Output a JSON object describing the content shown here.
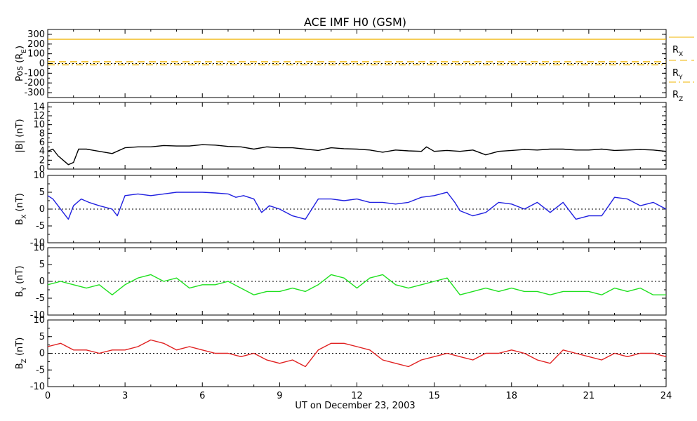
{
  "title": "ACE IMF H0 (GSM)",
  "xlabel": "UT on December 23, 2003",
  "x_ticks": [
    "0",
    "3",
    "6",
    "9",
    "12",
    "15",
    "18",
    "21",
    "24"
  ],
  "colors": {
    "position": "#f0b400",
    "magnitude": "#000000",
    "bx": "#2020e0",
    "by": "#20e020",
    "bz": "#e02020",
    "zero_line": "#000000"
  },
  "chart_data": [
    {
      "id": "pos",
      "type": "line",
      "ylabel_main": "Pos (R",
      "ylabel_sub": "E",
      "ylabel_tail": ")",
      "ylim": [
        -350,
        350
      ],
      "y_ticks": [
        "300",
        "200",
        "100",
        "0",
        "-100",
        "-200",
        "-300"
      ],
      "zero_line": true,
      "x": [
        0,
        24
      ],
      "series": [
        {
          "name": "R",
          "sub": "X",
          "values": [
            250,
            250
          ],
          "style": "solid"
        },
        {
          "name": "R",
          "sub": "Y",
          "values": [
            18,
            18
          ],
          "style": "dashed"
        },
        {
          "name": "R",
          "sub": "Z",
          "values": [
            -14,
            -14
          ],
          "style": "dashdot"
        }
      ]
    },
    {
      "id": "b_mag",
      "type": "line",
      "ylabel_main": "|B| (nT)",
      "ylabel_sub": "",
      "ylabel_tail": "",
      "ylim": [
        0,
        15
      ],
      "y_ticks": [
        "14",
        "12",
        "10",
        "8",
        "6",
        "4",
        "2",
        "0"
      ],
      "zero_line": false,
      "x": [
        0,
        0.2,
        0.4,
        0.6,
        0.8,
        1.0,
        1.2,
        1.5,
        2.0,
        2.5,
        3.0,
        3.5,
        4.0,
        4.5,
        5.0,
        5.5,
        6.0,
        6.5,
        7.0,
        7.5,
        8.0,
        8.5,
        9.0,
        9.5,
        10.0,
        10.5,
        11.0,
        11.5,
        12.0,
        12.5,
        13.0,
        13.5,
        14.0,
        14.5,
        14.7,
        15.0,
        15.5,
        16.0,
        16.5,
        17.0,
        17.5,
        18.0,
        18.5,
        19.0,
        19.5,
        20.0,
        20.5,
        21.0,
        21.5,
        22.0,
        22.5,
        23.0,
        23.5,
        24.0
      ],
      "series": [
        {
          "name": "|B|",
          "values": [
            4,
            4.5,
            3,
            2,
            1,
            1.5,
            4.5,
            4.5,
            4,
            3.5,
            4.8,
            5,
            5,
            5.3,
            5.2,
            5.2,
            5.5,
            5.4,
            5.1,
            5,
            4.5,
            5,
            4.8,
            4.8,
            4.5,
            4.2,
            4.8,
            4.6,
            4.5,
            4.3,
            3.8,
            4.3,
            4.1,
            4,
            5,
            4,
            4.2,
            4,
            4.3,
            3.2,
            4,
            4.2,
            4.4,
            4.3,
            4.5,
            4.5,
            4.3,
            4.3,
            4.5,
            4.2,
            4.3,
            4.4,
            4.3,
            4
          ]
        }
      ]
    },
    {
      "id": "bx",
      "type": "line",
      "ylabel_main": "B",
      "ylabel_sub": "X",
      "ylabel_tail": " (nT)",
      "ylim": [
        -10,
        10
      ],
      "y_ticks": [
        "10",
        "5",
        "0",
        "-5",
        "-10"
      ],
      "zero_line": true,
      "x": [
        0,
        0.2,
        0.4,
        0.6,
        0.8,
        1.0,
        1.3,
        1.6,
        2.0,
        2.5,
        2.7,
        3.0,
        3.5,
        4.0,
        4.5,
        5.0,
        5.5,
        6.0,
        6.5,
        7.0,
        7.3,
        7.6,
        8.0,
        8.3,
        8.6,
        9.0,
        9.5,
        10.0,
        10.5,
        11.0,
        11.5,
        12.0,
        12.5,
        13.0,
        13.5,
        14.0,
        14.5,
        15.0,
        15.5,
        15.8,
        16.0,
        16.5,
        17.0,
        17.5,
        18.0,
        18.5,
        19.0,
        19.5,
        20.0,
        20.5,
        21.0,
        21.5,
        22.0,
        22.5,
        23.0,
        23.5,
        24.0
      ],
      "series": [
        {
          "name": "Bx",
          "values": [
            4,
            3,
            1,
            -1,
            -3,
            1,
            3,
            2,
            1,
            0,
            -2,
            4,
            4.5,
            4,
            4.5,
            5,
            5,
            5,
            4.8,
            4.5,
            3.5,
            4,
            3,
            -1,
            1,
            0,
            -2,
            -3,
            3,
            3,
            2.5,
            3,
            2,
            2,
            1.5,
            2,
            3.5,
            4,
            5,
            2,
            -0.5,
            -2,
            -1,
            2,
            1.5,
            0,
            2,
            -1,
            2,
            -3,
            -2,
            -2,
            3.5,
            3,
            1,
            2,
            0
          ]
        }
      ]
    },
    {
      "id": "by",
      "type": "line",
      "ylabel_main": "B",
      "ylabel_sub": "Y",
      "ylabel_tail": " (nT)",
      "ylim": [
        -10,
        10
      ],
      "y_ticks": [
        "10",
        "5",
        "0",
        "-5",
        "-10"
      ],
      "zero_line": true,
      "x": [
        0,
        0.5,
        1.0,
        1.5,
        2.0,
        2.5,
        3.0,
        3.5,
        4.0,
        4.5,
        5.0,
        5.5,
        6.0,
        6.5,
        7.0,
        7.5,
        8.0,
        8.5,
        9.0,
        9.5,
        10.0,
        10.5,
        11.0,
        11.5,
        12.0,
        12.5,
        13.0,
        13.5,
        14.0,
        14.5,
        15.0,
        15.5,
        16.0,
        16.5,
        17.0,
        17.5,
        18.0,
        18.5,
        19.0,
        19.5,
        20.0,
        20.5,
        21.0,
        21.5,
        22.0,
        22.5,
        23.0,
        23.5,
        24.0
      ],
      "series": [
        {
          "name": "By",
          "values": [
            -1,
            0,
            -1,
            -2,
            -1,
            -4,
            -1,
            1,
            2,
            0,
            1,
            -2,
            -1,
            -1,
            0,
            -2,
            -4,
            -3,
            -3,
            -2,
            -3,
            -1,
            2,
            1,
            -2,
            1,
            2,
            -1,
            -2,
            -1,
            0,
            1,
            -4,
            -3,
            -2,
            -3,
            -2,
            -3,
            -3,
            -4,
            -3,
            -3,
            -3,
            -4,
            -2,
            -3,
            -2,
            -4,
            -4
          ]
        }
      ]
    },
    {
      "id": "bz",
      "type": "line",
      "ylabel_main": "B",
      "ylabel_sub": "Z",
      "ylabel_tail": " (nT)",
      "ylim": [
        -10,
        10
      ],
      "y_ticks": [
        "10",
        "5",
        "0",
        "-5",
        "-10"
      ],
      "zero_line": true,
      "x": [
        0,
        0.5,
        1.0,
        1.5,
        2.0,
        2.5,
        3.0,
        3.5,
        4.0,
        4.5,
        5.0,
        5.5,
        6.0,
        6.5,
        7.0,
        7.5,
        8.0,
        8.5,
        9.0,
        9.5,
        10.0,
        10.5,
        11.0,
        11.5,
        12.0,
        12.5,
        13.0,
        13.5,
        14.0,
        14.5,
        15.0,
        15.5,
        16.0,
        16.5,
        17.0,
        17.5,
        18.0,
        18.5,
        19.0,
        19.5,
        20.0,
        20.5,
        21.0,
        21.5,
        22.0,
        22.5,
        23.0,
        23.5,
        24.0
      ],
      "series": [
        {
          "name": "Bz",
          "values": [
            2,
            3,
            1,
            1,
            0,
            1,
            1,
            2,
            4,
            3,
            1,
            2,
            1,
            0,
            0,
            -1,
            0,
            -2,
            -3,
            -2,
            -4,
            1,
            3,
            3,
            2,
            1,
            -2,
            -3,
            -4,
            -2,
            -1,
            0,
            -1,
            -2,
            0,
            0,
            1,
            0,
            -2,
            -3,
            1,
            0,
            -1,
            -2,
            0,
            -1,
            0,
            0,
            -1
          ]
        }
      ]
    }
  ]
}
